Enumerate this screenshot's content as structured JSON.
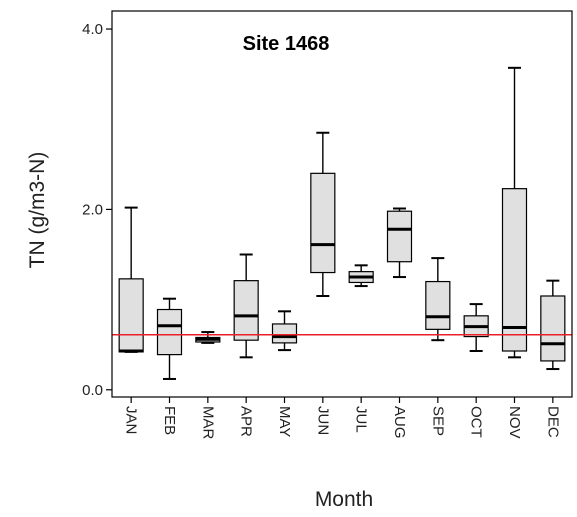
{
  "chart_data": {
    "type": "boxplot",
    "title": "Site 1468",
    "xlabel": "Month",
    "ylabel": "TN (g/m3-N)",
    "ylim": [
      -0.08,
      4.2
    ],
    "yticks": [
      {
        "value": 0.0,
        "label": "0.0"
      },
      {
        "value": 2.0,
        "label": "2.0"
      },
      {
        "value": 4.0,
        "label": "4.0"
      }
    ],
    "categories": [
      "JAN",
      "FEB",
      "MAR",
      "APR",
      "MAY",
      "JUN",
      "JUL",
      "AUG",
      "SEP",
      "OCT",
      "NOV",
      "DEC"
    ],
    "boxes": [
      {
        "min": 0.42,
        "q1": 0.42,
        "median": 0.43,
        "q3": 1.23,
        "max": 2.02
      },
      {
        "min": 0.12,
        "q1": 0.39,
        "median": 0.71,
        "q3": 0.89,
        "max": 1.01
      },
      {
        "min": 0.52,
        "q1": 0.53,
        "median": 0.56,
        "q3": 0.58,
        "max": 0.64
      },
      {
        "min": 0.36,
        "q1": 0.55,
        "median": 0.82,
        "q3": 1.21,
        "max": 1.5
      },
      {
        "min": 0.44,
        "q1": 0.52,
        "median": 0.59,
        "q3": 0.73,
        "max": 0.87
      },
      {
        "min": 1.04,
        "q1": 1.3,
        "median": 1.61,
        "q3": 2.4,
        "max": 2.85
      },
      {
        "min": 1.15,
        "q1": 1.19,
        "median": 1.25,
        "q3": 1.31,
        "max": 1.38
      },
      {
        "min": 1.25,
        "q1": 1.42,
        "median": 1.78,
        "q3": 1.98,
        "max": 2.01
      },
      {
        "min": 0.55,
        "q1": 0.67,
        "median": 0.81,
        "q3": 1.2,
        "max": 1.46
      },
      {
        "min": 0.43,
        "q1": 0.59,
        "median": 0.7,
        "q3": 0.82,
        "max": 0.95
      },
      {
        "min": 0.36,
        "q1": 0.43,
        "median": 0.69,
        "q3": 2.23,
        "max": 3.57
      },
      {
        "min": 0.23,
        "q1": 0.32,
        "median": 0.51,
        "q3": 1.04,
        "max": 1.21
      }
    ],
    "reference_line": {
      "value": 0.61,
      "color": "#e8202a"
    },
    "box_fill": "#e0e0e0",
    "stroke_color": "#000000",
    "grid": false
  }
}
